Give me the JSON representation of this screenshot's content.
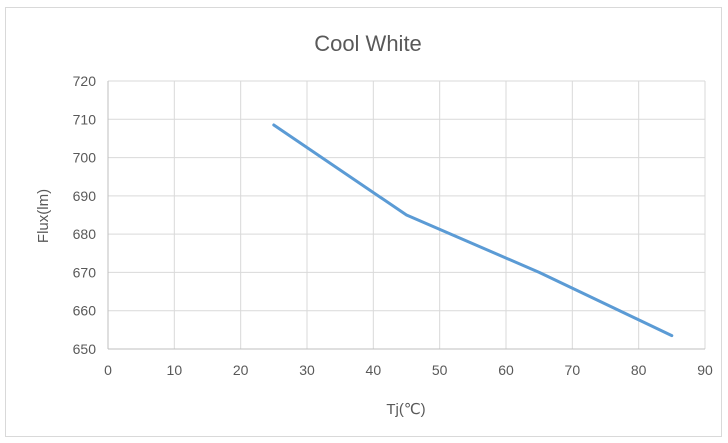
{
  "chart_data": {
    "type": "line",
    "title": "Cool White",
    "xlabel": "Tj(℃)",
    "ylabel": "Flux(lm)",
    "xlim": [
      0,
      90
    ],
    "ylim": [
      650,
      720
    ],
    "xticks": [
      0,
      10,
      20,
      30,
      40,
      50,
      60,
      70,
      80,
      90
    ],
    "yticks": [
      650,
      660,
      670,
      680,
      690,
      700,
      710,
      720
    ],
    "grid": true,
    "legend": "none",
    "series": [
      {
        "color": "#5b9bd5",
        "x": [
          25,
          45,
          65,
          85
        ],
        "y": [
          708.5,
          685,
          670,
          653.5
        ]
      }
    ]
  }
}
